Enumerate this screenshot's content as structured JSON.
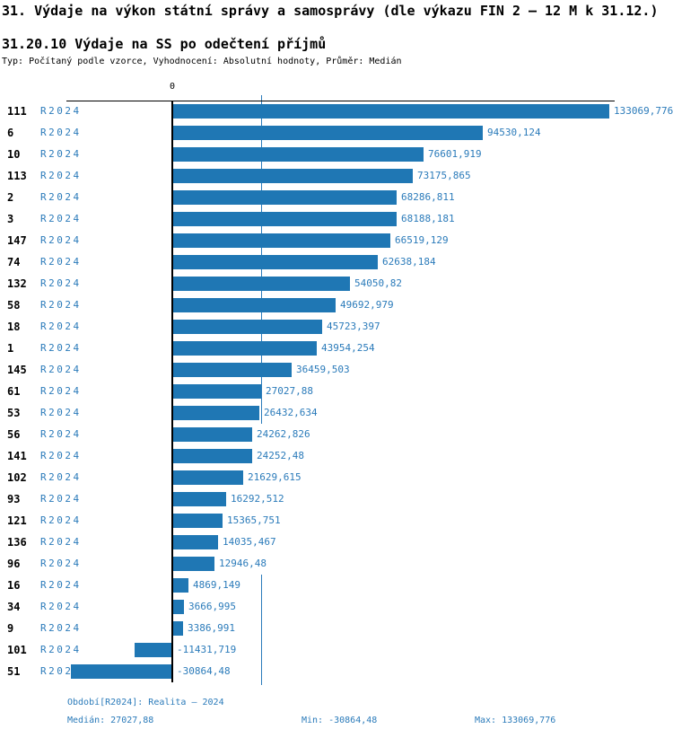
{
  "title": "31. Výdaje na výkon státní správy a samosprávy (dle výkazu FIN 2 – 12 M k 31.12.)",
  "subtitle": "31.20.10 Výdaje na SS po odečtení příjmů",
  "meta": "Typ: Počítaný podle vzorce, Vyhodnocení: Absolutní hodnoty, Průměr: Medián",
  "axis": {
    "zero_label": "0"
  },
  "colors": {
    "bar": "#1F77B4",
    "blue_text": "#2B7BBA",
    "median_line": "#2B7BBA",
    "axis": "#000000"
  },
  "footer": {
    "period": "Období[R2024]: Realita – 2024",
    "median": "Medián: 27027,88",
    "min": "Min: -30864,48",
    "max": "Max: 133069,776"
  },
  "chart_data": {
    "type": "bar",
    "orientation": "horizontal",
    "title": "31.20.10 Výdaje na SS po odečtení příjmů",
    "series_label": "R2024",
    "categories": [
      "111",
      "6",
      "10",
      "113",
      "2",
      "3",
      "147",
      "74",
      "132",
      "58",
      "18",
      "1",
      "145",
      "61",
      "53",
      "56",
      "141",
      "102",
      "93",
      "121",
      "136",
      "96",
      "16",
      "34",
      "9",
      "101",
      "51"
    ],
    "values": [
      133069.776,
      94530.124,
      76601.919,
      73175.865,
      68286.811,
      68188.181,
      66519.129,
      62638.184,
      54050.82,
      49692.979,
      45723.397,
      43954.254,
      36459.503,
      27027.88,
      26432.634,
      24262.826,
      24252.48,
      21629.615,
      16292.512,
      15365.751,
      14035.467,
      12946.48,
      4869.149,
      3666.995,
      3386.991,
      -11431.719,
      -30864.48
    ],
    "value_labels": [
      "133069,776",
      "94530,124",
      "76601,919",
      "73175,865",
      "68286,811",
      "68188,181",
      "66519,129",
      "62638,184",
      "54050,82",
      "49692,979",
      "45723,397",
      "43954,254",
      "36459,503",
      "27027,88",
      "26432,634",
      "24262,826",
      "24252,48",
      "21629,615",
      "16292,512",
      "15365,751",
      "14035,467",
      "12946,48",
      "4869,149",
      "3666,995",
      "3386,991",
      "-11431,719",
      "-30864,48"
    ],
    "median": 27027.88,
    "min": -30864.48,
    "max": 133069.776,
    "xlim": [
      -30864.48,
      133069.776
    ],
    "zero_tick_label": "0",
    "grid": false,
    "legend_position": "none"
  }
}
